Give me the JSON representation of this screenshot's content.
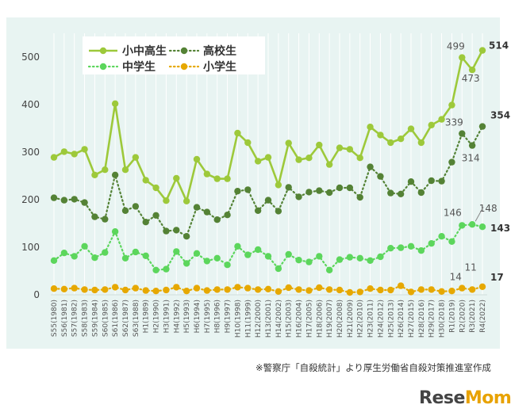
{
  "chart_data": {
    "type": "line",
    "categories": [
      "S55(1980)",
      "S56(1981)",
      "S57(1982)",
      "S58(1983)",
      "S59(1984)",
      "S60(1985)",
      "S61(1986)",
      "S62(1987)",
      "S63(1988)",
      "H1(1989)",
      "H2(1990)",
      "H3(1991)",
      "H4(1992)",
      "H5(1993)",
      "H6(1994)",
      "H7(1995)",
      "H8(1996)",
      "H9(1997)",
      "H10(1998)",
      "H11(1999)",
      "H12(2000)",
      "H13(2001)",
      "H14(2002)",
      "H15(2003)",
      "H16(2004)",
      "H17(2005)",
      "H18(2006)",
      "H19(2007)",
      "H20(2008)",
      "H21(2009)",
      "H22(2010)",
      "H23(2011)",
      "H24(2012)",
      "H25(2013)",
      "H26(2014)",
      "H27(2015)",
      "H28(2016)",
      "H29(2017)",
      "H30(2018)",
      "R1(2019)",
      "R2(2020)",
      "R3(2021)",
      "R4(2022)"
    ],
    "ylim": [
      0,
      550
    ],
    "yticks": [
      0,
      100,
      200,
      300,
      400,
      500
    ],
    "grid": "vertical",
    "legend_placement": "top-left",
    "series": [
      {
        "name": "小中高生",
        "style": "solid",
        "color": "#9dc93a",
        "values": [
          289,
          301,
          296,
          306,
          252,
          263,
          402,
          263,
          289,
          241,
          225,
          198,
          245,
          197,
          285,
          254,
          244,
          244,
          340,
          320,
          281,
          289,
          231,
          319,
          284,
          288,
          315,
          274,
          309,
          306,
          288,
          353,
          336,
          320,
          328,
          349,
          320,
          357,
          369,
          399,
          499,
          473,
          514
        ]
      },
      {
        "name": "高校生",
        "style": "dotted",
        "color": "#548235",
        "values": [
          204,
          199,
          201,
          194,
          164,
          159,
          252,
          177,
          186,
          153,
          167,
          134,
          136,
          123,
          184,
          174,
          158,
          168,
          218,
          221,
          177,
          199,
          176,
          226,
          206,
          216,
          219,
          215,
          225,
          225,
          205,
          269,
          249,
          214,
          212,
          238,
          215,
          240,
          239,
          279,
          339,
          314,
          354
        ]
      },
      {
        "name": "中学生",
        "style": "dotted",
        "color": "#5cd65c",
        "values": [
          72,
          88,
          81,
          102,
          78,
          89,
          133,
          77,
          90,
          82,
          52,
          54,
          91,
          66,
          87,
          71,
          77,
          63,
          102,
          84,
          95,
          81,
          55,
          85,
          73,
          69,
          81,
          52,
          74,
          79,
          77,
          72,
          80,
          98,
          99,
          102,
          93,
          108,
          123,
          112,
          146,
          148,
          143
        ]
      },
      {
        "name": "小学生",
        "style": "dotted",
        "color": "#e6a800",
        "values": [
          13,
          12,
          14,
          11,
          10,
          11,
          16,
          10,
          14,
          9,
          8,
          10,
          16,
          8,
          14,
          9,
          11,
          11,
          16,
          14,
          11,
          12,
          7,
          15,
          11,
          9,
          15,
          11,
          10,
          5,
          6,
          13,
          10,
          10,
          19,
          6,
          11,
          11,
          7,
          8,
          14,
          11,
          17
        ]
      }
    ],
    "annotations": [
      {
        "series": 0,
        "index": 40,
        "text": "499",
        "bold": false
      },
      {
        "series": 0,
        "index": 41,
        "text": "473",
        "bold": false
      },
      {
        "series": 0,
        "index": 42,
        "text": "514",
        "bold": true
      },
      {
        "series": 1,
        "index": 40,
        "text": "339",
        "bold": false
      },
      {
        "series": 1,
        "index": 41,
        "text": "314",
        "bold": false
      },
      {
        "series": 1,
        "index": 42,
        "text": "354",
        "bold": true
      },
      {
        "series": 2,
        "index": 40,
        "text": "146",
        "bold": false
      },
      {
        "series": 2,
        "index": 41,
        "text": "148",
        "bold": false
      },
      {
        "series": 2,
        "index": 42,
        "text": "143",
        "bold": true
      },
      {
        "series": 3,
        "index": 40,
        "text": "14",
        "bold": false
      },
      {
        "series": 3,
        "index": 41,
        "text": "11",
        "bold": false
      },
      {
        "series": 3,
        "index": 42,
        "text": "17",
        "bold": true
      }
    ]
  },
  "source_note": "※警察庁「自殺統計」より厚生労働省自殺対策推進室作成",
  "logo": {
    "part1": "Rese",
    "part2": "Mom"
  }
}
